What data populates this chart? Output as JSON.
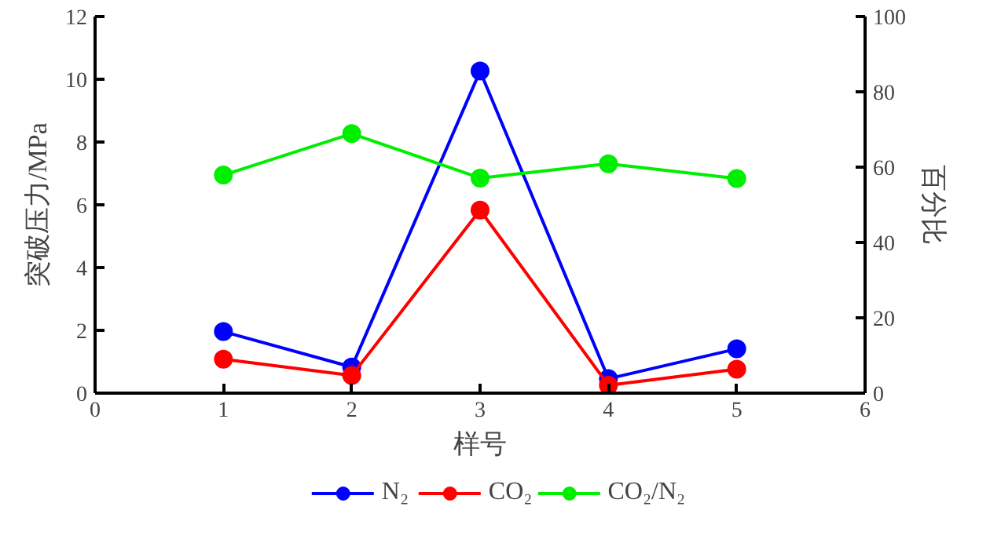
{
  "chart_data": {
    "type": "line",
    "xlabel": "样号",
    "ylabel": "突破压力/MPa",
    "y2label": "百分比",
    "x": [
      1,
      2,
      3,
      4,
      5
    ],
    "xlim": [
      0,
      6
    ],
    "xticks": [
      0,
      1,
      2,
      3,
      4,
      5,
      6
    ],
    "ylim": [
      0,
      12
    ],
    "yticks": [
      0,
      2,
      4,
      6,
      8,
      10,
      12
    ],
    "y2lim": [
      0,
      100
    ],
    "y2ticks": [
      0,
      20,
      40,
      60,
      80,
      100
    ],
    "marker": "circle",
    "line_style": "solid",
    "grid": false,
    "legend": "bottom",
    "series": [
      {
        "name": "N₂",
        "color": "#0000ff",
        "values": [
          1.96,
          0.83,
          10.26,
          0.46,
          1.41
        ]
      },
      {
        "name": "CO₂",
        "color": "#ff0000",
        "values": [
          1.08,
          0.56,
          5.83,
          0.25,
          0.76
        ]
      },
      {
        "name": "CO₂/N₂",
        "color": "#00ee00",
        "axis": "y2",
        "values": [
          57.9,
          68.9,
          57.1,
          60.9,
          57.0
        ]
      }
    ]
  }
}
